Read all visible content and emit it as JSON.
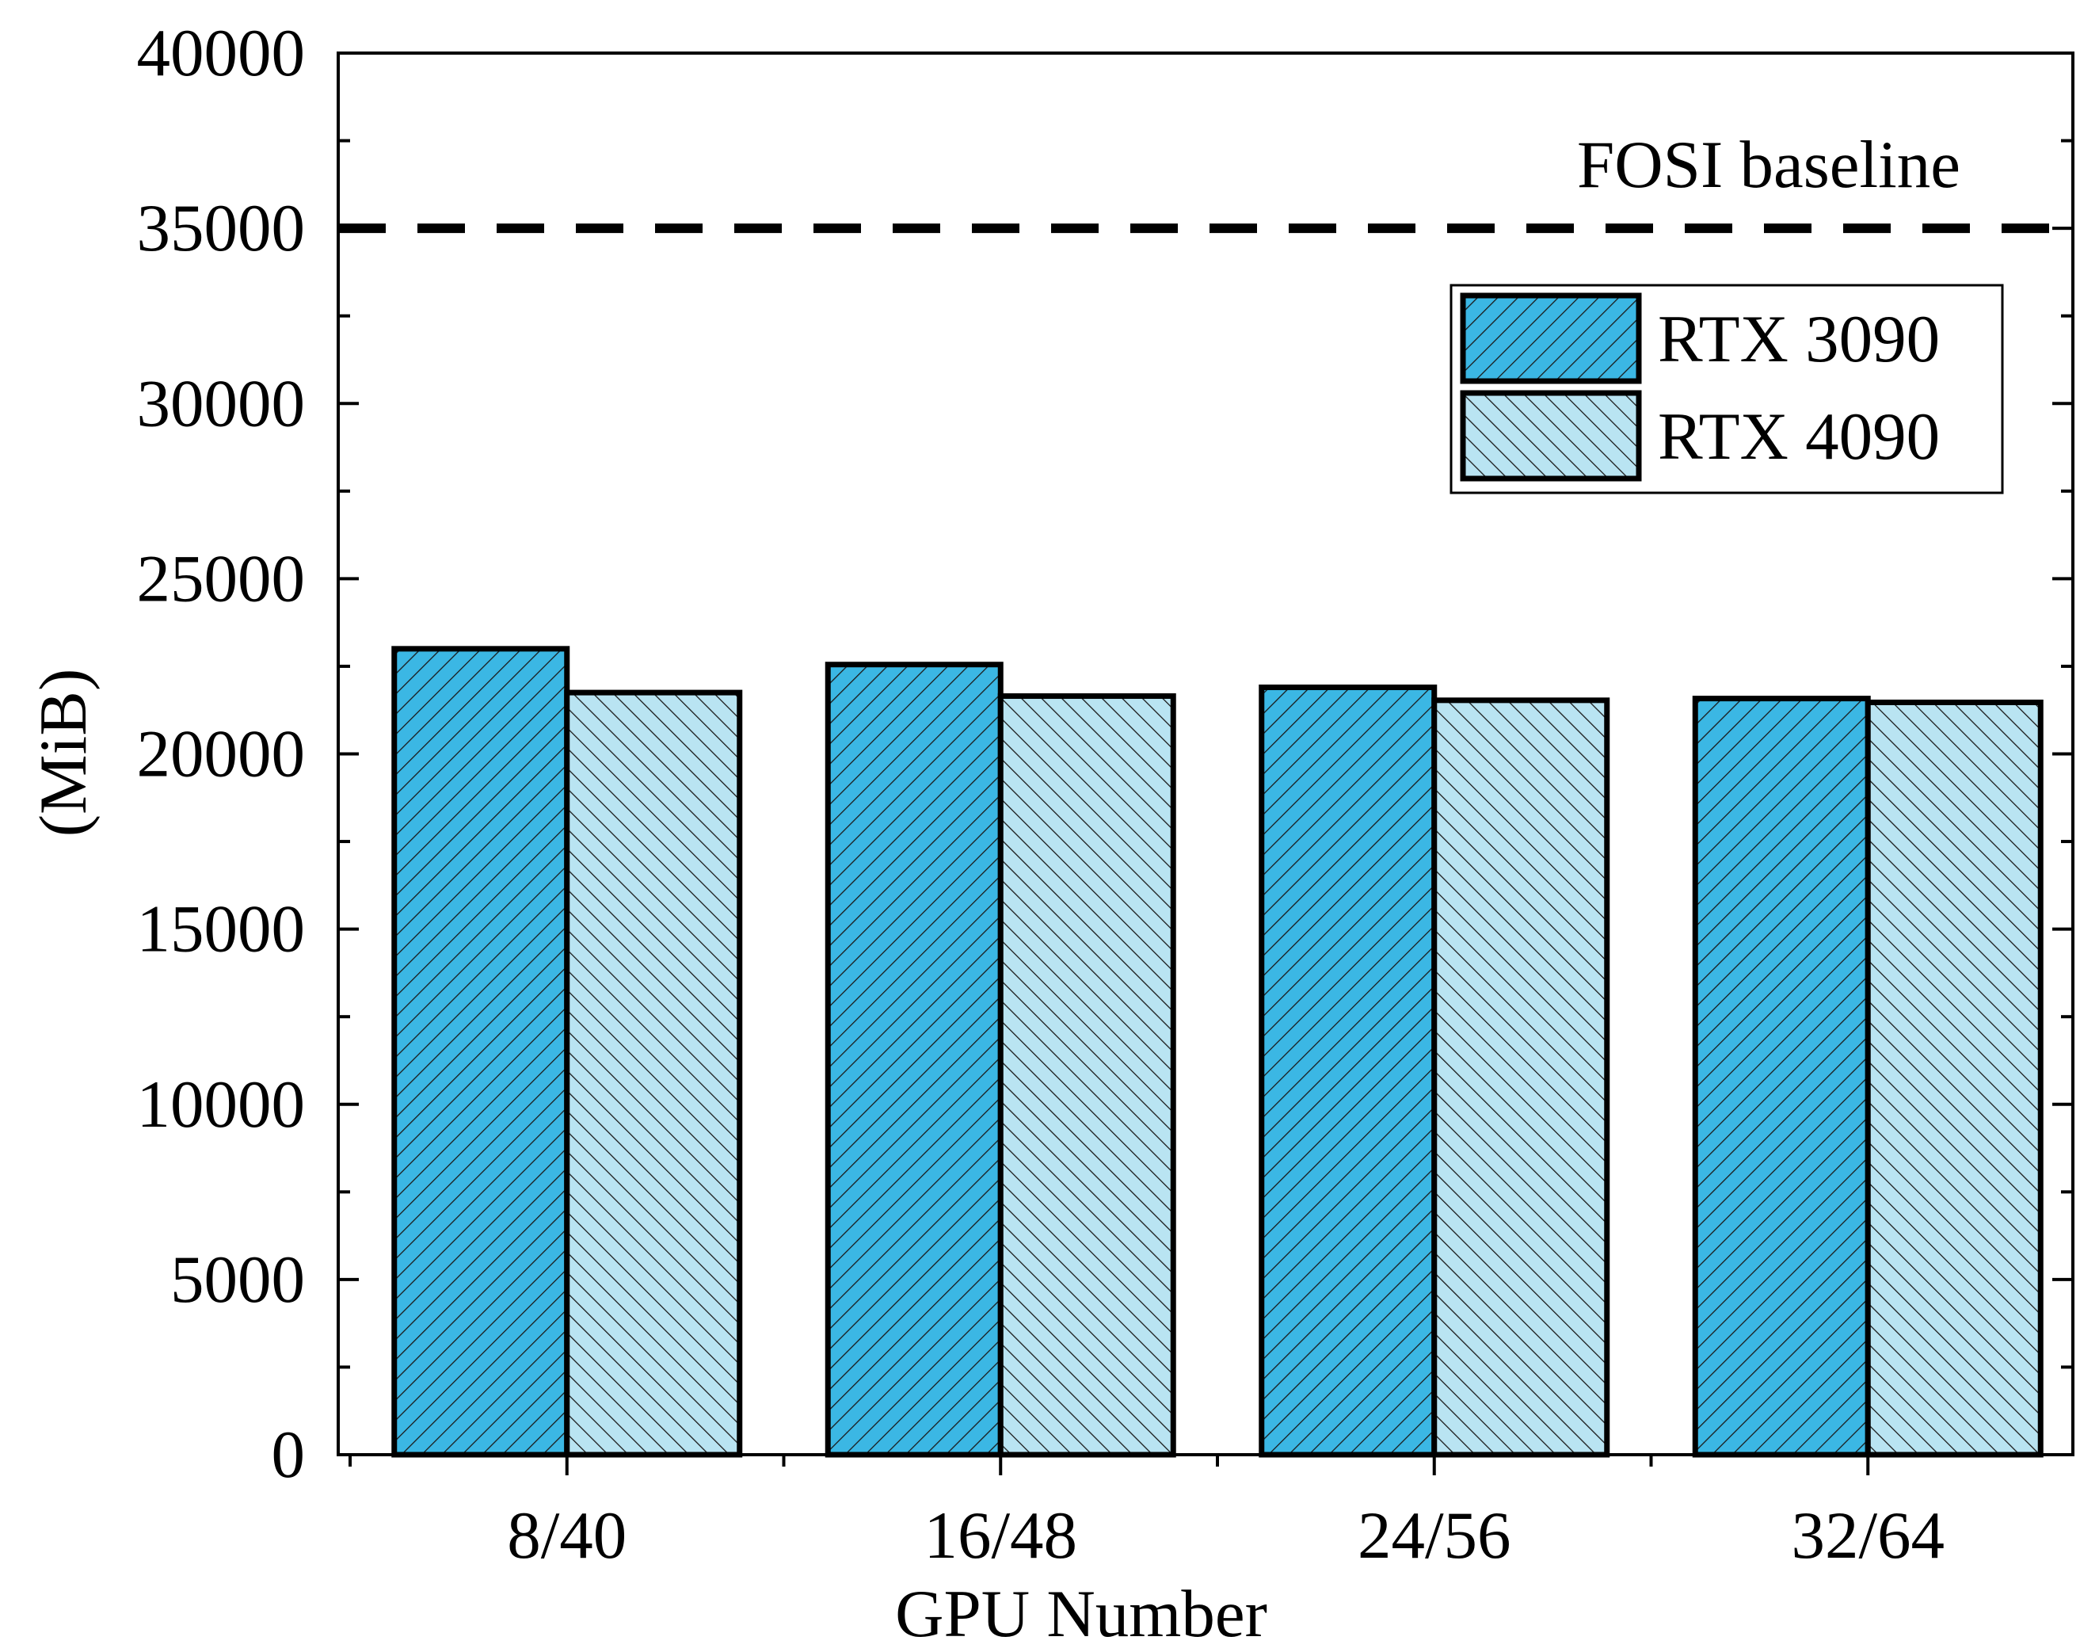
{
  "chart_data": {
    "type": "bar",
    "title": "",
    "xlabel": "GPU Number",
    "ylabel": "(MiB)",
    "categories": [
      "8/40",
      "16/48",
      "24/56",
      "32/64"
    ],
    "series": [
      {
        "name": "RTX 3090",
        "values": [
          23000,
          22550,
          21900,
          21580
        ],
        "color": "#3bb7e4"
      },
      {
        "name": "RTX 4090",
        "values": [
          21750,
          21650,
          21530,
          21470
        ],
        "color": "#b9e4f2"
      }
    ],
    "ylim": [
      0,
      40000
    ],
    "yticks": [
      0,
      5000,
      10000,
      15000,
      20000,
      25000,
      30000,
      35000,
      40000
    ],
    "ytick_labels": [
      "0",
      "5000",
      "10000",
      "15000",
      "20000",
      "25000",
      "30000",
      "35000",
      "40000"
    ],
    "reference_line": {
      "label": "FOSI baseline",
      "value": 35000,
      "style": "dashed"
    },
    "legend": {
      "position": "top-right"
    }
  }
}
